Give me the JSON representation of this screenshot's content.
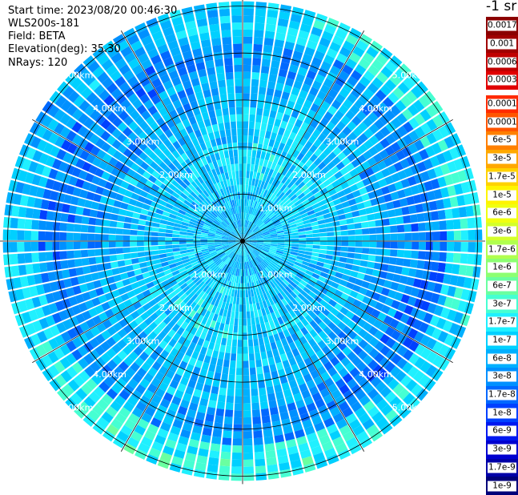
{
  "header": {
    "start_time": "Start time: 2023/08/20 00:46:30",
    "instrument": "WLS200s-181",
    "field": "Field: BETA",
    "elevation": "Elevation(deg): 35.30",
    "nrays": "NRays: 120"
  },
  "colorbar": {
    "title": "-1 sr",
    "upper_group": [
      {
        "label": "0.0017",
        "color": "#8b0000"
      },
      {
        "label": "0.001",
        "color": "#a00000"
      },
      {
        "label": "0.0006",
        "color": "#c00000"
      },
      {
        "label": "0.0003",
        "color": "#e00000"
      }
    ],
    "lower_group": [
      {
        "label": "0.00017",
        "color": "#ff2a00"
      },
      {
        "label": "0.0001",
        "color": "#ff5500"
      },
      {
        "label": "6e-5",
        "color": "#ff8000"
      },
      {
        "label": "3e-5",
        "color": "#ffa800"
      },
      {
        "label": "1.7e-5",
        "color": "#ffd200"
      },
      {
        "label": "1e-5",
        "color": "#fff400"
      },
      {
        "label": "6e-6",
        "color": "#f0ff10"
      },
      {
        "label": "3e-6",
        "color": "#d4ff2a"
      },
      {
        "label": "1.7e-6",
        "color": "#b0ff4e"
      },
      {
        "label": "1e-6",
        "color": "#8cff72"
      },
      {
        "label": "6e-7",
        "color": "#6affa0"
      },
      {
        "label": "3e-7",
        "color": "#46ffd2"
      },
      {
        "label": "1.7e-7",
        "color": "#20f0ff"
      },
      {
        "label": "1e-7",
        "color": "#00d0ff"
      },
      {
        "label": "6e-8",
        "color": "#00b0ff"
      },
      {
        "label": "3e-8",
        "color": "#0090ff"
      },
      {
        "label": "1.7e-8",
        "color": "#0068ff"
      },
      {
        "label": "1e-8",
        "color": "#0040ff"
      },
      {
        "label": "6e-9",
        "color": "#0018f0"
      },
      {
        "label": "3e-9",
        "color": "#0000d0"
      },
      {
        "label": "1.7e-9",
        "color": "#0000a8"
      },
      {
        "label": "1e-9",
        "color": "#00007a"
      }
    ]
  },
  "chart_data": {
    "type": "heatmap",
    "projection": "polar (PPI scan)",
    "n_rays": 120,
    "range_rings_km": [
      1,
      2,
      3,
      4,
      5
    ],
    "ring_labels": [
      "1.00km",
      "2.00km",
      "3.00km",
      "4.00km",
      "5.00km"
    ],
    "spoke_interval_deg": 30,
    "max_range_km": 5.1,
    "range_bins": 34,
    "dominant_values_by_range": [
      {
        "range_km": [
          0,
          1
        ],
        "value": "1e-7 to 6e-8"
      },
      {
        "range_km": [
          1,
          2
        ],
        "value": "1e-7 to 6e-8"
      },
      {
        "range_km": [
          2,
          3.5
        ],
        "value": "1.7e-7 to 6e-8"
      },
      {
        "range_km": [
          3.5,
          4.5
        ],
        "value": "6e-8 to 1.7e-8"
      },
      {
        "range_km": [
          4.5,
          5.1
        ],
        "value": "3e-7 to 3e-8"
      }
    ],
    "colorscale": "log",
    "value_range": [
      "1e-9",
      "0.0017"
    ]
  }
}
